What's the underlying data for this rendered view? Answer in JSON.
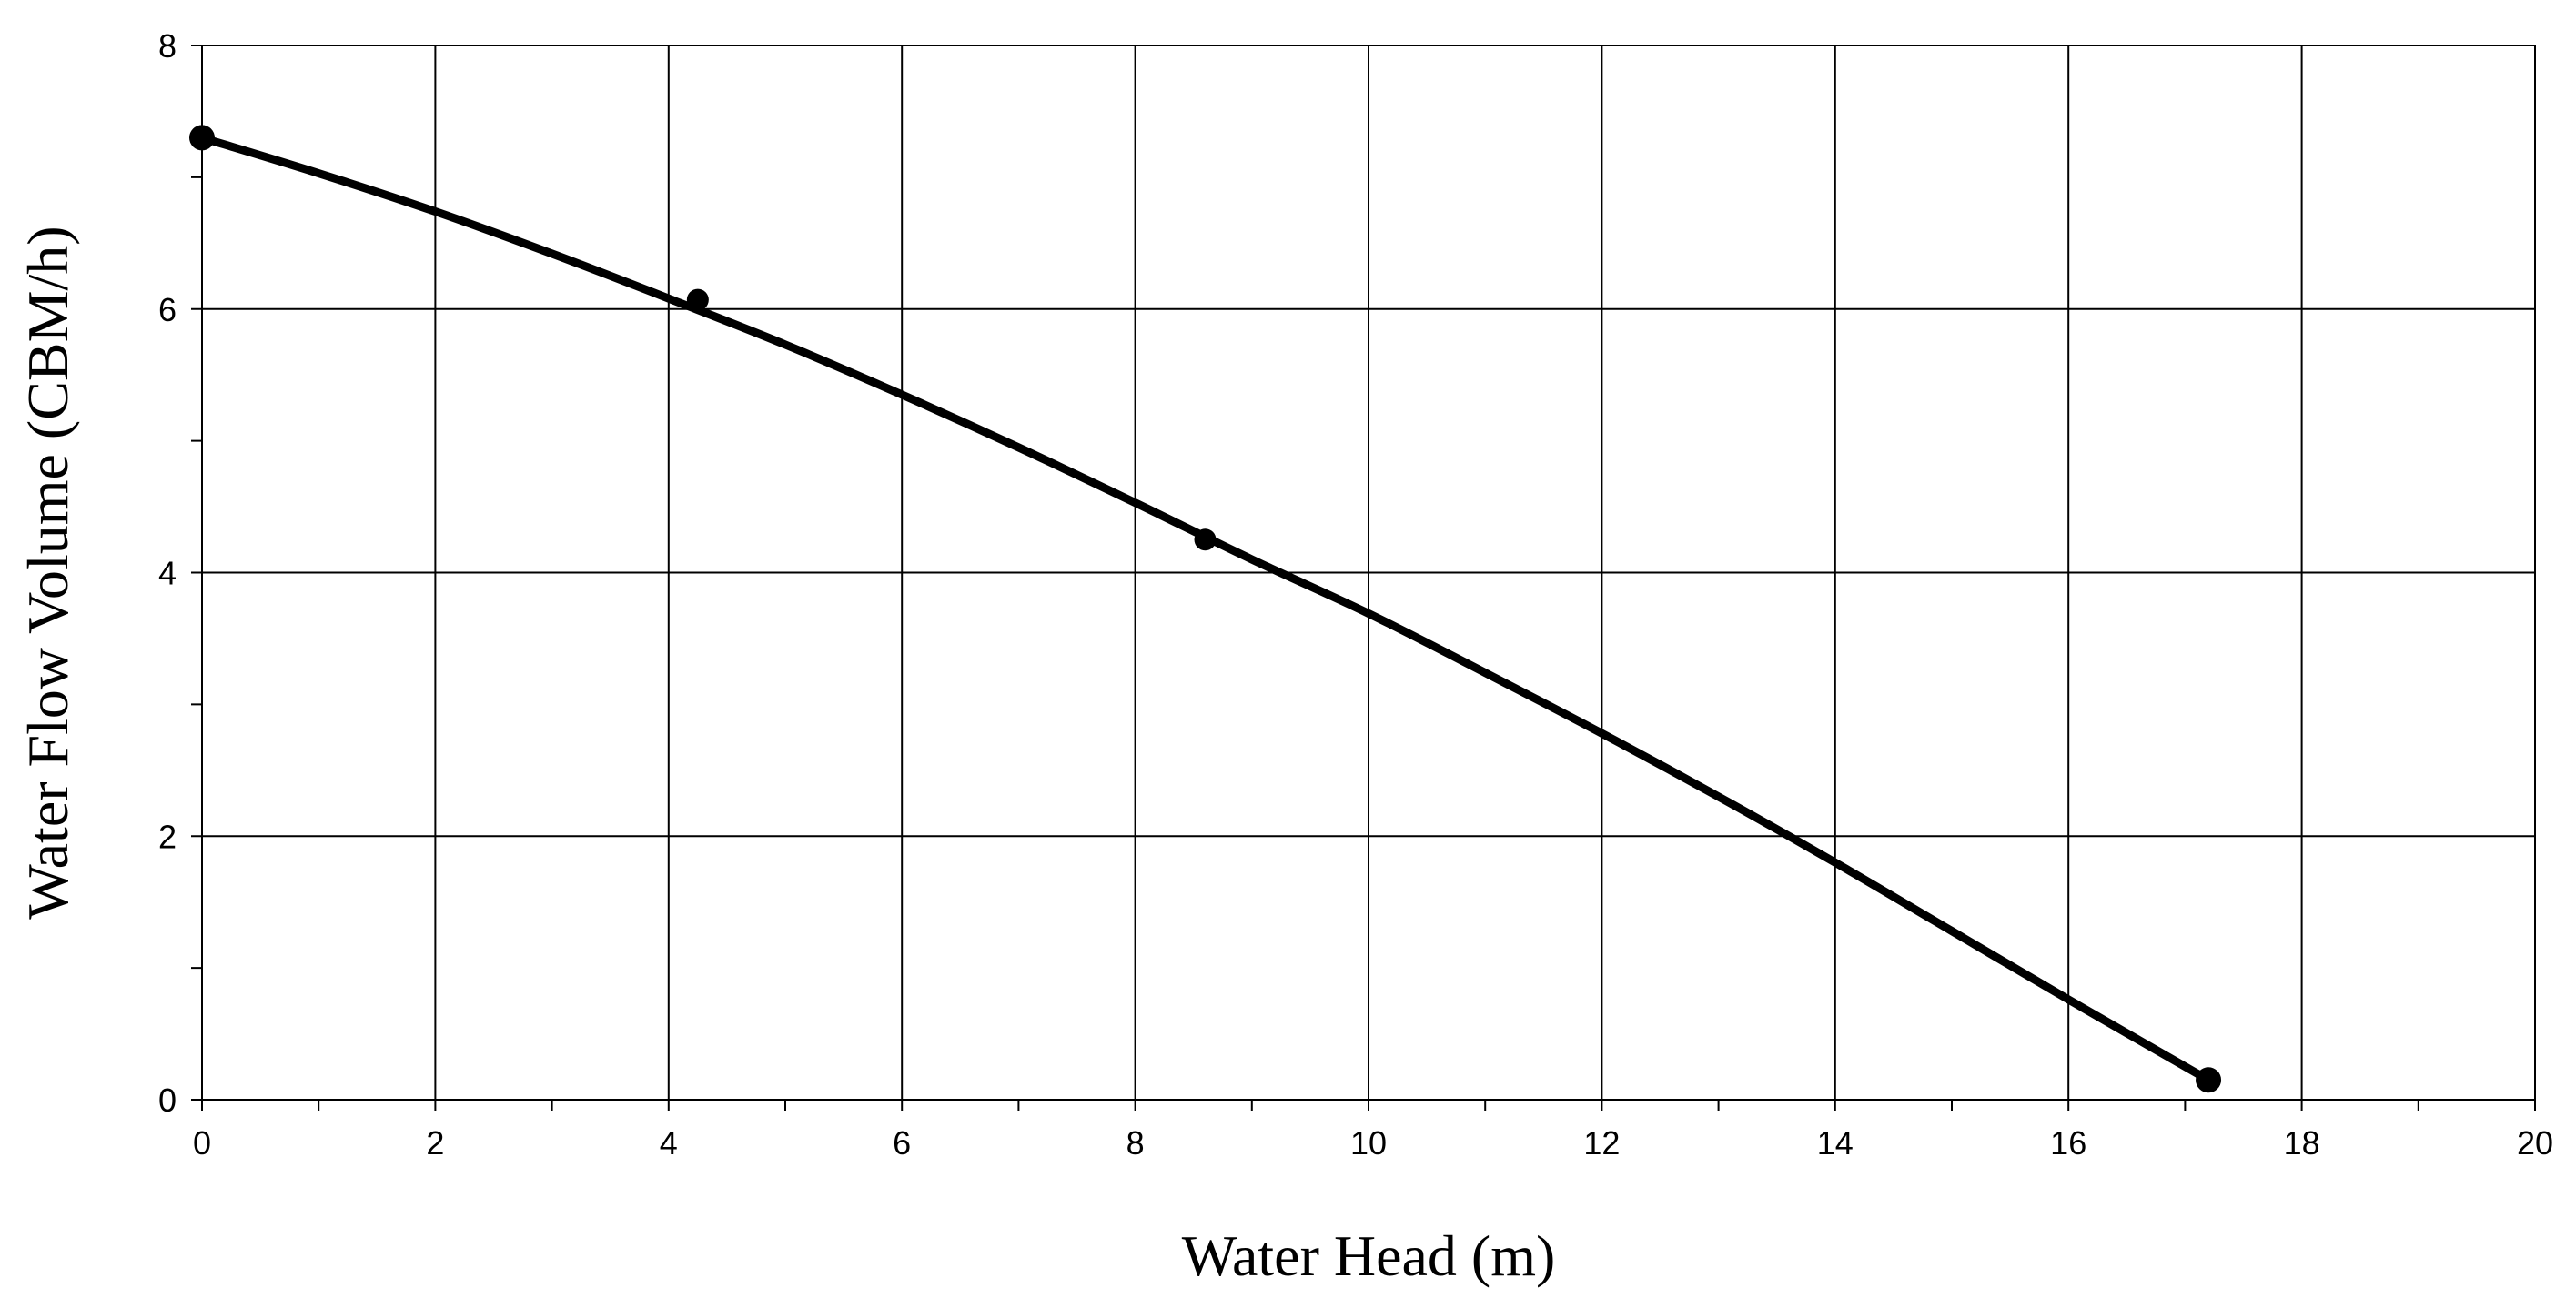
{
  "chart_data": {
    "type": "scatter",
    "title": "",
    "xlabel": "Water Head (m)",
    "ylabel": "Water Flow Volume (CBM/h)",
    "xlim": [
      0,
      20
    ],
    "ylim": [
      0,
      8
    ],
    "x_ticks": [
      0,
      2,
      4,
      6,
      8,
      10,
      12,
      14,
      16,
      18,
      20
    ],
    "y_ticks": [
      0,
      2,
      4,
      6,
      8
    ],
    "x_minor_step": 1,
    "y_minor_step": 1,
    "grid": true,
    "points": [
      {
        "x": 0,
        "y": 7.3
      },
      {
        "x": 4.25,
        "y": 6.07
      },
      {
        "x": 8.6,
        "y": 4.25
      },
      {
        "x": 17.2,
        "y": 0.15
      }
    ],
    "fit_curve": {
      "type": "line",
      "x": [
        0,
        1,
        2,
        3,
        4,
        5,
        6,
        7,
        8,
        9,
        10,
        11,
        12,
        13,
        14,
        15,
        16,
        17.2
      ],
      "y": [
        7.3,
        7.03,
        6.74,
        6.42,
        6.08,
        5.73,
        5.35,
        4.95,
        4.53,
        4.1,
        3.69,
        3.24,
        2.78,
        2.3,
        1.8,
        1.28,
        0.76,
        0.15
      ]
    },
    "colors": {
      "line": "#000000",
      "grid": "#000000",
      "points": "#000000"
    }
  }
}
